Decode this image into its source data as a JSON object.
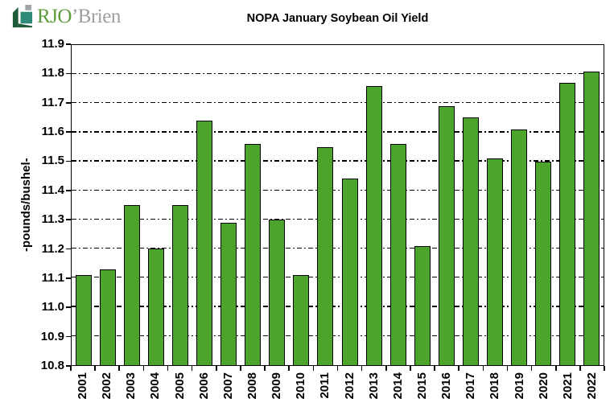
{
  "logo": {
    "primary": "RJO",
    "secondary": "’Brien",
    "primary_color": "#5d9c3a",
    "secondary_color": "#9c9ea0",
    "icon_dark_green": "#1e5b39",
    "icon_teal": "#2e8977",
    "icon_gray": "#a0a4a4"
  },
  "chart_data": {
    "type": "bar",
    "title": "NOPA January Soybean Oil Yield",
    "xlabel": "",
    "ylabel": "-pounds/bushel-",
    "ylim": [
      10.8,
      11.9
    ],
    "ytick_step": 0.1,
    "yticks": [
      "11.9",
      "11.8",
      "11.7",
      "11.6",
      "11.5",
      "11.4",
      "11.3",
      "11.2",
      "11.1",
      "11.0",
      "10.9",
      "10.8"
    ],
    "grid": "horizontal-dashed",
    "legend": "none",
    "bar_color": "#4ca42a",
    "bar_border_color": "#000000",
    "categories": [
      "2001",
      "2002",
      "2003",
      "2004",
      "2005",
      "2006",
      "2007",
      "2008",
      "2009",
      "2010",
      "2011",
      "2012",
      "2013",
      "2014",
      "2015",
      "2016",
      "2017",
      "2018",
      "2019",
      "2020",
      "2021",
      "2022"
    ],
    "values": [
      11.11,
      11.13,
      11.35,
      11.2,
      11.35,
      11.64,
      11.29,
      11.56,
      11.3,
      11.11,
      11.55,
      11.44,
      11.76,
      11.56,
      11.21,
      11.69,
      11.65,
      11.51,
      11.61,
      11.5,
      11.77,
      11.81
    ]
  }
}
